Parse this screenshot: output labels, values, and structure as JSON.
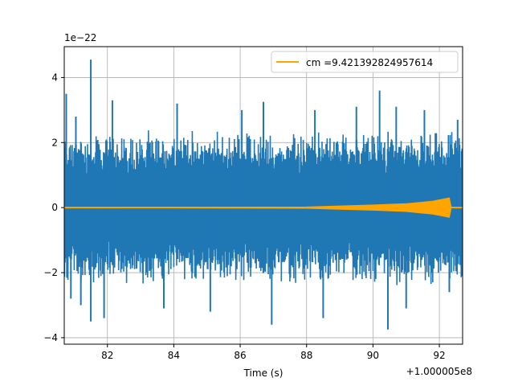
{
  "chart_data": {
    "type": "line",
    "title": "",
    "xlabel": "Time (s)",
    "ylabel": "",
    "x_offset_label": "+1.000005e8",
    "y_scale_label": "1e−22",
    "xlim": [
      80.7,
      92.7
    ],
    "ylim": [
      -4.2,
      4.95
    ],
    "xticks": [
      82,
      84,
      86,
      88,
      90,
      92
    ],
    "xtick_labels": [
      "82",
      "84",
      "86",
      "88",
      "90",
      "92"
    ],
    "yticks": [
      -4,
      -2,
      0,
      2,
      4
    ],
    "ytick_labels": [
      "−4",
      "−2",
      "0",
      "2",
      "4"
    ],
    "grid": true,
    "legend": {
      "position": "top-right"
    },
    "series": [
      {
        "name": "",
        "color": "#1f77b4",
        "description_values": "noisy strain data, bulk envelope approx ±2.2 (e-22)",
        "envelope": {
          "upper": 2.2,
          "lower": -2.2
        },
        "spikes": [
          {
            "x": 80.76,
            "y": 3.5
          },
          {
            "x": 81.5,
            "y": 4.55
          },
          {
            "x": 81.5,
            "y": -3.5
          },
          {
            "x": 80.9,
            "y": -2.8
          },
          {
            "x": 81.05,
            "y": 2.8
          },
          {
            "x": 81.2,
            "y": -3.0
          },
          {
            "x": 81.9,
            "y": -3.4
          },
          {
            "x": 82.15,
            "y": 3.3
          },
          {
            "x": 83.7,
            "y": -3.1
          },
          {
            "x": 84.1,
            "y": 3.2
          },
          {
            "x": 85.1,
            "y": -3.2
          },
          {
            "x": 86.05,
            "y": 3.0
          },
          {
            "x": 86.95,
            "y": -3.6
          },
          {
            "x": 86.7,
            "y": 3.25
          },
          {
            "x": 88.25,
            "y": 3.0
          },
          {
            "x": 88.5,
            "y": -3.4
          },
          {
            "x": 89.5,
            "y": 3.1
          },
          {
            "x": 90.45,
            "y": -3.75
          },
          {
            "x": 90.2,
            "y": 3.6
          },
          {
            "x": 90.7,
            "y": 3.1
          },
          {
            "x": 91.0,
            "y": -3.1
          },
          {
            "x": 91.55,
            "y": 3.0
          },
          {
            "x": 92.3,
            "y": -2.6
          },
          {
            "x": 92.55,
            "y": 2.7
          }
        ]
      },
      {
        "name": "cm =9.421392824957614",
        "color": "#ffa500",
        "chirp_points": [
          {
            "x": 80.7,
            "y": 0.0
          },
          {
            "x": 88.0,
            "y": 0.02
          },
          {
            "x": 89.0,
            "y": 0.05
          },
          {
            "x": 90.0,
            "y": 0.08
          },
          {
            "x": 91.0,
            "y": 0.12
          },
          {
            "x": 91.8,
            "y": 0.2
          },
          {
            "x": 92.3,
            "y": 0.3
          },
          {
            "x": 92.36,
            "y": 0.0
          },
          {
            "x": 92.7,
            "y": 0.0
          }
        ]
      }
    ]
  }
}
